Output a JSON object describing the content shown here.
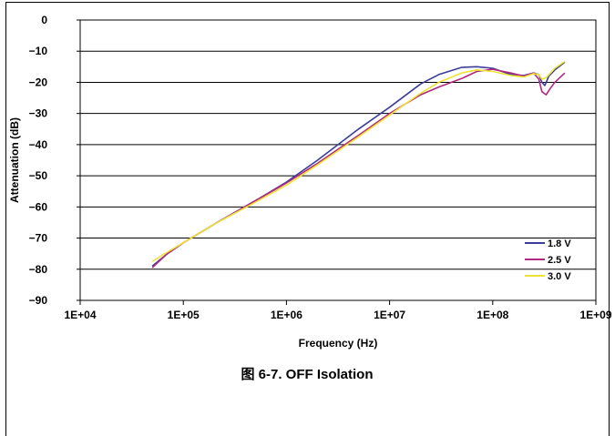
{
  "chart_data": {
    "type": "line",
    "xscale": "log",
    "xlim": [
      10000,
      1000000000
    ],
    "ylim": [
      -90,
      0
    ],
    "xlabel": "Frequency (Hz)",
    "ylabel": "Attenuation (dB)",
    "xticks": [
      "1E+04",
      "1E+05",
      "1E+06",
      "1E+07",
      "1E+08",
      "1E+09"
    ],
    "yticks": [
      "0",
      "−10",
      "−20",
      "−30",
      "−40",
      "−50",
      "−60",
      "−70",
      "−80",
      "−90"
    ],
    "grid": "horizontal",
    "legend": "bottom-right",
    "series": [
      {
        "name": "1.8 V",
        "color": "#3b3b9b",
        "points": [
          [
            50000,
            -79
          ],
          [
            70000,
            -75
          ],
          [
            100000,
            -71.5
          ],
          [
            200000,
            -65.5
          ],
          [
            500000,
            -58
          ],
          [
            1000000,
            -52
          ],
          [
            2000000,
            -45
          ],
          [
            5000000,
            -35
          ],
          [
            10000000,
            -28
          ],
          [
            20000000,
            -20.5
          ],
          [
            30000000,
            -17.5
          ],
          [
            50000000,
            -15.2
          ],
          [
            70000000,
            -15
          ],
          [
            100000000,
            -15.5
          ],
          [
            150000000,
            -17.5
          ],
          [
            200000000,
            -17.8
          ],
          [
            250000000,
            -17
          ],
          [
            280000000,
            -17.5
          ],
          [
            300000000,
            -20
          ],
          [
            320000000,
            -21
          ],
          [
            350000000,
            -18
          ],
          [
            400000000,
            -16
          ],
          [
            500000000,
            -13.5
          ]
        ]
      },
      {
        "name": "2.5 V",
        "color": "#b0287f",
        "points": [
          [
            50000,
            -79.5
          ],
          [
            70000,
            -75
          ],
          [
            100000,
            -71.5
          ],
          [
            200000,
            -65.5
          ],
          [
            500000,
            -58
          ],
          [
            1000000,
            -52.3
          ],
          [
            2000000,
            -46
          ],
          [
            5000000,
            -37
          ],
          [
            10000000,
            -30
          ],
          [
            20000000,
            -24
          ],
          [
            30000000,
            -21.5
          ],
          [
            50000000,
            -18.8
          ],
          [
            70000000,
            -16.5
          ],
          [
            100000000,
            -15.8
          ],
          [
            150000000,
            -17
          ],
          [
            200000000,
            -18
          ],
          [
            250000000,
            -17
          ],
          [
            280000000,
            -19
          ],
          [
            300000000,
            -23
          ],
          [
            330000000,
            -24
          ],
          [
            360000000,
            -22
          ],
          [
            400000000,
            -20
          ],
          [
            500000000,
            -17
          ]
        ]
      },
      {
        "name": "3.0 V",
        "color": "#f0e233",
        "points": [
          [
            50000,
            -77.5
          ],
          [
            70000,
            -74.5
          ],
          [
            100000,
            -71.5
          ],
          [
            200000,
            -65.5
          ],
          [
            500000,
            -58.5
          ],
          [
            1000000,
            -53
          ],
          [
            2000000,
            -46.5
          ],
          [
            5000000,
            -37.5
          ],
          [
            10000000,
            -30.5
          ],
          [
            20000000,
            -23.5
          ],
          [
            30000000,
            -20
          ],
          [
            50000000,
            -17
          ],
          [
            70000000,
            -16
          ],
          [
            100000000,
            -16.5
          ],
          [
            150000000,
            -17.8
          ],
          [
            200000000,
            -18.3
          ],
          [
            250000000,
            -17.2
          ],
          [
            280000000,
            -17.5
          ],
          [
            300000000,
            -19
          ],
          [
            330000000,
            -18.5
          ],
          [
            400000000,
            -15.5
          ],
          [
            500000000,
            -13.3
          ]
        ]
      }
    ]
  },
  "caption": "图 6-7. OFF Isolation"
}
